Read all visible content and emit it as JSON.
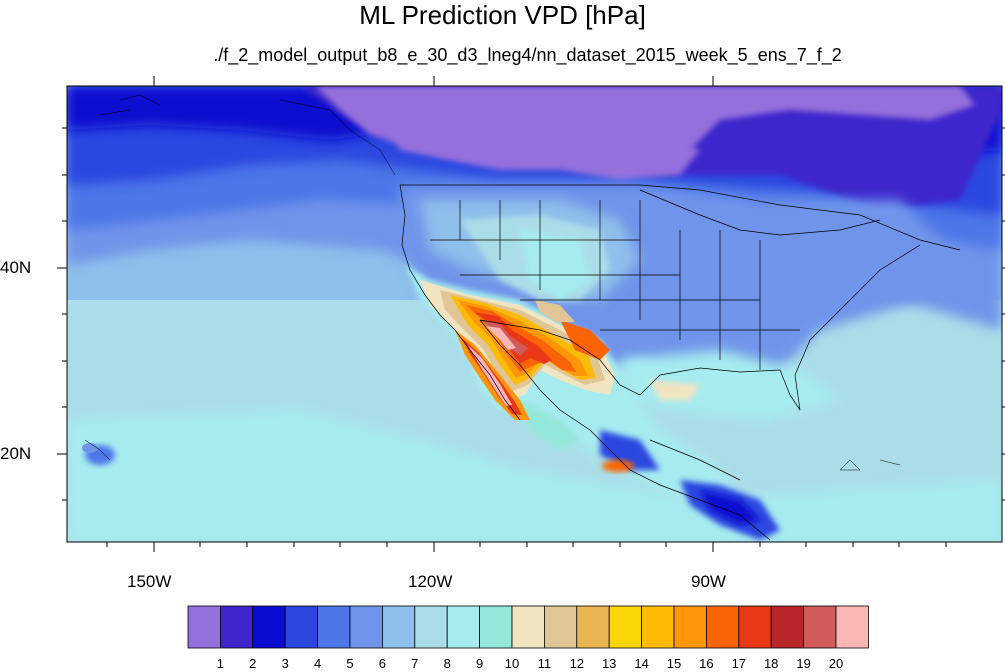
{
  "header": {
    "title": "ML Prediction VPD [hPa]",
    "subtitle": "./f_2_model_output_b8_e_30_d3_lneg4/nn_dataset_2015_week_5_ens_7_f_2"
  },
  "axes": {
    "x_ticks": [
      "150W",
      "120W",
      "90W"
    ],
    "y_ticks": [
      "40N",
      "20N"
    ]
  },
  "colorbar": {
    "labels": [
      "1",
      "2",
      "3",
      "4",
      "5",
      "6",
      "7",
      "8",
      "9",
      "10",
      "11",
      "12",
      "13",
      "14",
      "15",
      "16",
      "17",
      "18",
      "19",
      "20"
    ],
    "colors": [
      "#9470dc",
      "#3e25cc",
      "#0b0ccf",
      "#2b47e0",
      "#4e76e8",
      "#6f94ea",
      "#8fbfeb",
      "#abdde8",
      "#a6ecef",
      "#94e8d9",
      "#f1e4c0",
      "#e0c596",
      "#e7b653",
      "#fbd606",
      "#fdbb08",
      "#fd9609",
      "#fa6406",
      "#e93818",
      "#b9262a",
      "#d05b5a",
      "#fdb6b6"
    ]
  },
  "colors": {
    "background": "#ffffff",
    "frame": "#000000"
  }
}
